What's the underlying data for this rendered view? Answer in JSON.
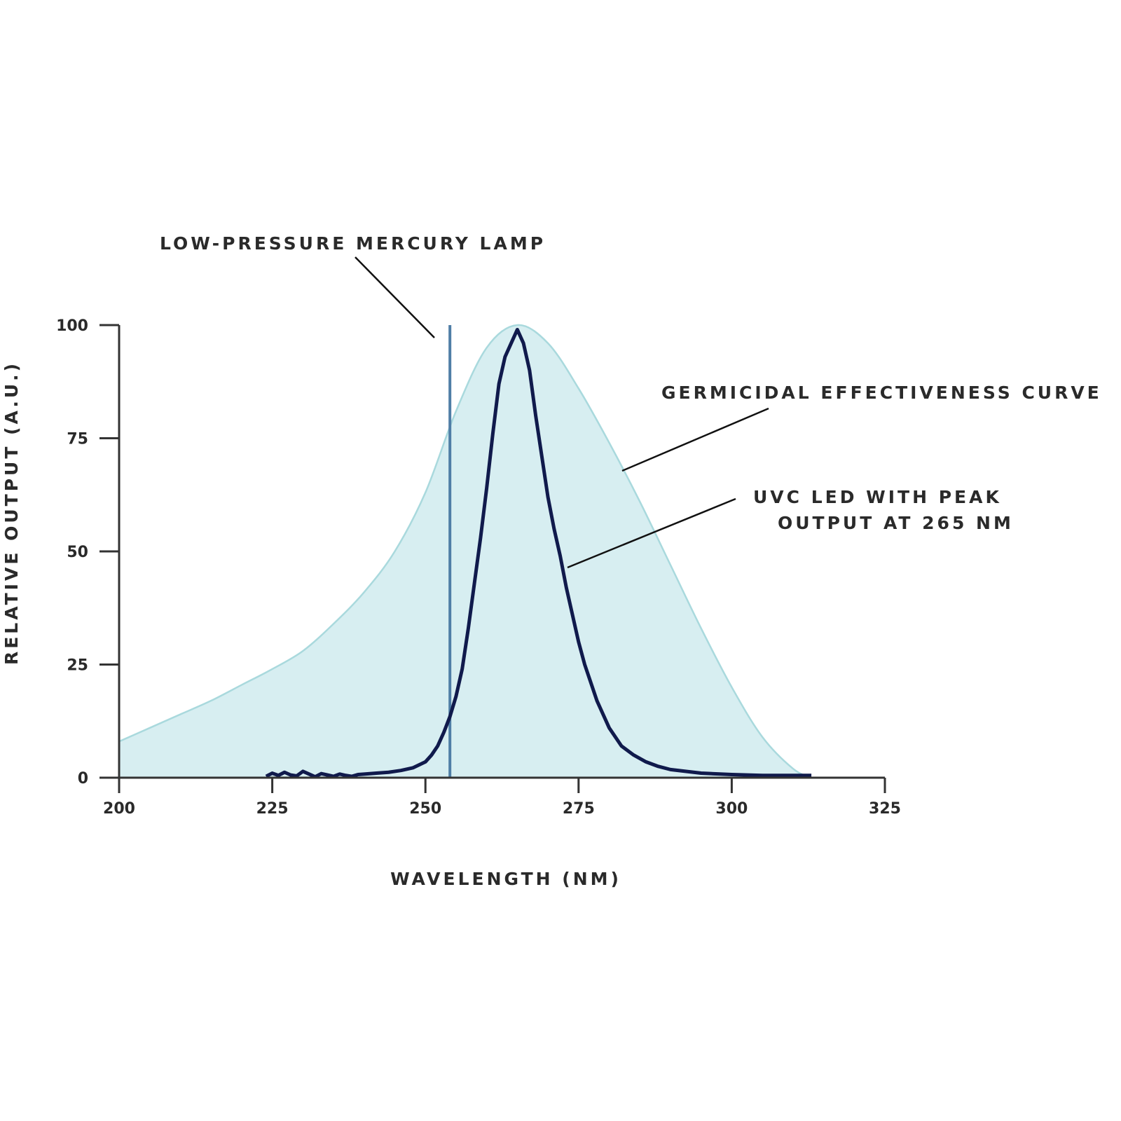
{
  "chart_data": {
    "type": "area",
    "xlabel": "WAVELENGTH (NM)",
    "ylabel": "RELATIVE OUTPUT (A.U.)",
    "xlim": [
      200,
      325
    ],
    "ylim": [
      0,
      100
    ],
    "xticks": [
      200,
      225,
      250,
      275,
      300,
      325
    ],
    "yticks": [
      0,
      25,
      50,
      75,
      100
    ],
    "grid": false,
    "colors": {
      "germicidal_fill": "#d7eef1",
      "germicidal_stroke": "#a9d9dd",
      "led": "#101a4c",
      "lamp": "#4f7ea6",
      "axis": "#333333"
    },
    "series": [
      {
        "name": "GERMICIDAL EFFECTIVENESS CURVE",
        "type": "area",
        "x": [
          200,
          205,
          210,
          215,
          220,
          225,
          230,
          235,
          240,
          245,
          250,
          255,
          260,
          265,
          270,
          275,
          280,
          285,
          290,
          295,
          300,
          305,
          310,
          313
        ],
        "y": [
          8,
          11,
          14,
          17,
          20.5,
          24,
          28,
          34,
          41,
          50,
          63,
          81,
          95,
          100,
          96,
          86,
          74,
          61,
          47,
          33,
          20,
          9,
          2,
          0
        ]
      },
      {
        "name": "UVC LED WITH PEAK OUTPUT AT 265 NM",
        "type": "line",
        "x": [
          224,
          225,
          226,
          227,
          228,
          229,
          230,
          231,
          232,
          233,
          234,
          235,
          236,
          237,
          238,
          239,
          240,
          242,
          244,
          246,
          248,
          250,
          251,
          252,
          253,
          254,
          255,
          256,
          257,
          258,
          259,
          260,
          261,
          262,
          263,
          264,
          265,
          266,
          267,
          268,
          269,
          270,
          271,
          272,
          273,
          274,
          275,
          276,
          277,
          278,
          280,
          282,
          284,
          286,
          288,
          290,
          295,
          300,
          305,
          310,
          313
        ],
        "y": [
          0.3,
          1,
          0.5,
          1.2,
          0.6,
          0.4,
          1.4,
          0.8,
          0.2,
          0.9,
          0.6,
          0.3,
          0.8,
          0.5,
          0.3,
          0.7,
          0.8,
          1,
          1.2,
          1.6,
          2.2,
          3.5,
          5,
          7,
          10,
          13.5,
          18,
          24,
          33,
          43,
          53,
          64,
          76,
          87,
          93,
          96,
          99,
          96,
          90,
          80,
          71,
          62,
          55,
          49,
          42,
          36,
          30,
          25,
          21,
          17,
          11,
          7,
          5,
          3.5,
          2.5,
          1.8,
          1,
          0.7,
          0.5,
          0.5,
          0.5
        ]
      },
      {
        "name": "LOW-PRESSURE MERCURY LAMP",
        "type": "vline",
        "x": 254
      }
    ],
    "annotations": [
      {
        "text": "LOW-PRESSURE MERCURY LAMP",
        "target": "LOW-PRESSURE MERCURY LAMP"
      },
      {
        "text": "GERMICIDAL EFFECTIVENESS CURVE",
        "target": "GERMICIDAL EFFECTIVENESS CURVE"
      },
      {
        "text_lines": [
          "UVC LED WITH PEAK",
          "OUTPUT AT 265 NM"
        ],
        "target": "UVC LED WITH PEAK OUTPUT AT 265 NM"
      }
    ]
  }
}
